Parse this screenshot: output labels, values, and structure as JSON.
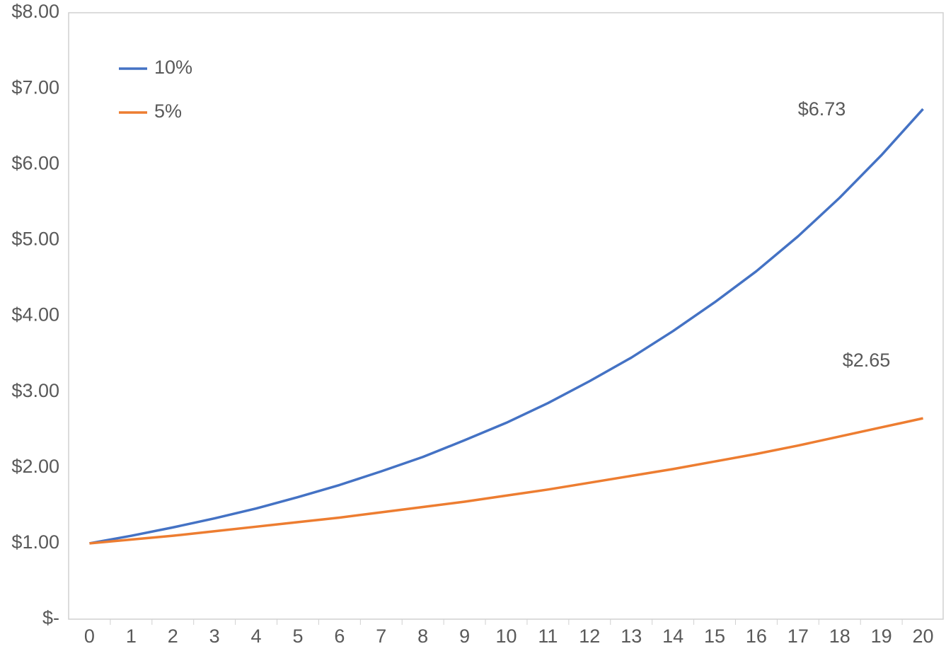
{
  "chart_data": {
    "type": "line",
    "categories": [
      "0",
      "1",
      "2",
      "3",
      "4",
      "5",
      "6",
      "7",
      "8",
      "9",
      "10",
      "11",
      "12",
      "13",
      "14",
      "15",
      "16",
      "17",
      "18",
      "19",
      "20"
    ],
    "series": [
      {
        "name": "10%",
        "color": "#4472c4",
        "values": [
          1,
          1.1,
          1.21,
          1.33,
          1.46,
          1.61,
          1.77,
          1.95,
          2.14,
          2.36,
          2.59,
          2.85,
          3.14,
          3.45,
          3.8,
          4.18,
          4.59,
          5.05,
          5.56,
          6.12,
          6.73
        ],
        "value_labels": [
          null,
          null,
          null,
          null,
          null,
          null,
          null,
          null,
          null,
          null,
          null,
          null,
          null,
          null,
          null,
          null,
          null,
          null,
          null,
          null,
          "$6.73"
        ]
      },
      {
        "name": "5%",
        "color": "#ed7d31",
        "values": [
          1,
          1.05,
          1.1,
          1.16,
          1.22,
          1.28,
          1.34,
          1.41,
          1.48,
          1.55,
          1.63,
          1.71,
          1.8,
          1.89,
          1.98,
          2.08,
          2.18,
          2.29,
          2.41,
          2.53,
          2.65
        ],
        "value_labels": [
          null,
          null,
          null,
          null,
          null,
          null,
          null,
          null,
          null,
          null,
          null,
          null,
          null,
          null,
          null,
          null,
          null,
          null,
          null,
          null,
          "$2.65"
        ]
      }
    ],
    "ylim": [
      0,
      8
    ],
    "yticks": [
      {
        "value": 0,
        "label": "$-"
      },
      {
        "value": 1,
        "label": "$1.00"
      },
      {
        "value": 2,
        "label": "$2.00"
      },
      {
        "value": 3,
        "label": "$3.00"
      },
      {
        "value": 4,
        "label": "$4.00"
      },
      {
        "value": 5,
        "label": "$5.00"
      },
      {
        "value": 6,
        "label": "$6.00"
      },
      {
        "value": 7,
        "label": "$7.00"
      },
      {
        "value": 8,
        "label": "$8.00"
      }
    ],
    "grid": false,
    "legend": "top-left"
  }
}
